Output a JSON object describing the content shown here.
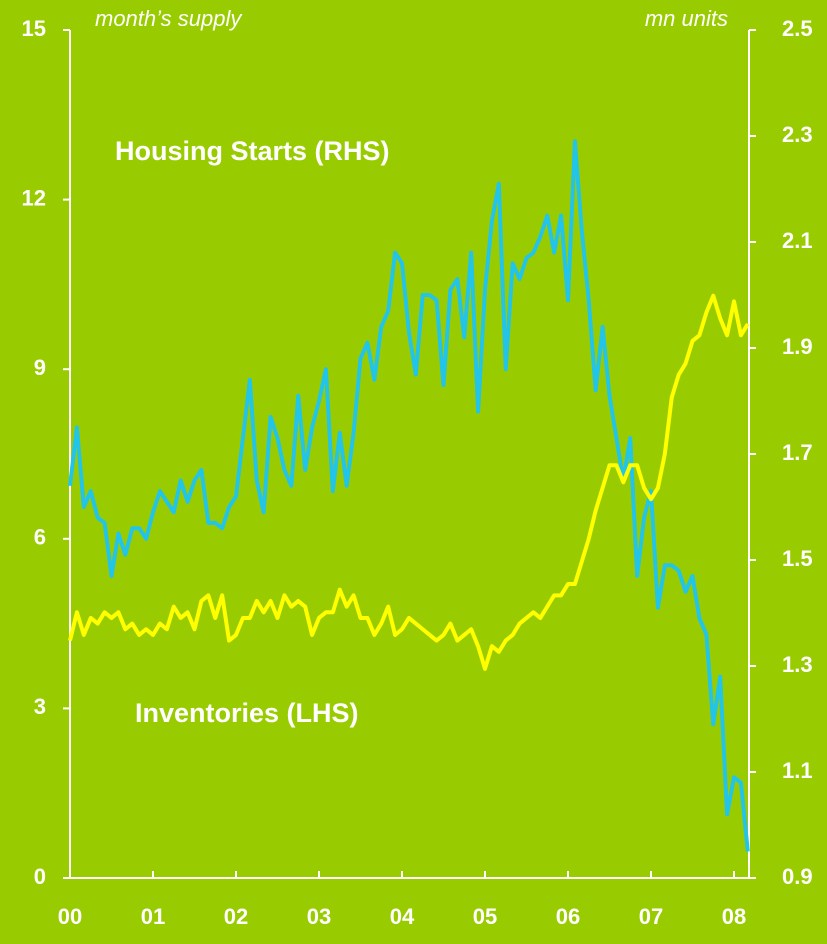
{
  "chart_data": {
    "type": "line",
    "annotations": [
      {
        "text": "month’s supply",
        "color": "#ffffff"
      },
      {
        "text": "mn units",
        "color": "#ffffff"
      },
      {
        "text": "Housing Starts (RHS)",
        "color": "#22c4e8"
      },
      {
        "text": "Inventories (LHS)",
        "color": "#ffff00"
      }
    ],
    "categories": [
      "00",
      null,
      null,
      null,
      null,
      null,
      null,
      null,
      null,
      null,
      null,
      null,
      "01",
      null,
      null,
      null,
      null,
      null,
      null,
      null,
      null,
      null,
      null,
      null,
      "02",
      null,
      null,
      null,
      null,
      null,
      null,
      null,
      null,
      null,
      null,
      null,
      "03",
      null,
      null,
      null,
      null,
      null,
      null,
      null,
      null,
      null,
      null,
      null,
      "04",
      null,
      null,
      null,
      null,
      null,
      null,
      null,
      null,
      null,
      null,
      null,
      "05",
      null,
      null,
      null,
      null,
      null,
      null,
      null,
      null,
      null,
      null,
      null,
      "06",
      null,
      null,
      null,
      null,
      null,
      null,
      null,
      null,
      null,
      null,
      null,
      "07",
      null,
      null,
      null,
      null,
      null,
      null,
      null,
      null,
      null,
      null,
      null,
      "08",
      null,
      null
    ],
    "series": [
      {
        "name": "Housing Starts (RHS)",
        "color": "#22c4e8",
        "axis": "y2",
        "values": [
          1.64,
          1.75,
          1.6,
          1.63,
          1.58,
          1.57,
          1.47,
          1.55,
          1.51,
          1.56,
          1.56,
          1.54,
          1.59,
          1.63,
          1.61,
          1.59,
          1.65,
          1.61,
          1.65,
          1.67,
          1.57,
          1.57,
          1.56,
          1.6,
          1.62,
          1.73,
          1.84,
          1.65,
          1.59,
          1.77,
          1.73,
          1.67,
          1.64,
          1.81,
          1.67,
          1.75,
          1.8,
          1.86,
          1.63,
          1.74,
          1.64,
          1.74,
          1.88,
          1.91,
          1.84,
          1.94,
          1.97,
          2.08,
          2.06,
          1.93,
          1.85,
          2.0,
          2.0,
          1.99,
          1.83,
          2.01,
          2.03,
          1.92,
          2.08,
          1.78,
          2.01,
          2.14,
          2.21,
          1.86,
          2.06,
          2.03,
          2.07,
          2.08,
          2.11,
          2.15,
          2.08,
          2.15,
          1.99,
          2.29,
          2.12,
          1.99,
          1.82,
          1.94,
          1.81,
          1.73,
          1.65,
          1.73,
          1.47,
          1.58,
          1.63,
          1.41,
          1.49,
          1.49,
          1.48,
          1.44,
          1.47,
          1.39,
          1.36,
          1.19,
          1.28,
          1.02,
          1.09,
          1.08,
          0.95
        ]
      },
      {
        "name": "Inventories (LHS)",
        "color": "#ffff00",
        "values": [
          4.2,
          4.7,
          4.3,
          4.6,
          4.5,
          4.7,
          4.6,
          4.7,
          4.4,
          4.5,
          4.3,
          4.4,
          4.3,
          4.5,
          4.4,
          4.8,
          4.6,
          4.7,
          4.4,
          4.9,
          5.0,
          4.6,
          5.0,
          4.2,
          4.3,
          4.6,
          4.6,
          4.9,
          4.7,
          4.9,
          4.6,
          5.0,
          4.8,
          4.9,
          4.8,
          4.3,
          4.6,
          4.7,
          4.7,
          5.1,
          4.8,
          5.0,
          4.6,
          4.6,
          4.3,
          4.5,
          4.8,
          4.3,
          4.4,
          4.6,
          4.5,
          4.4,
          4.3,
          4.2,
          4.3,
          4.5,
          4.2,
          4.3,
          4.4,
          4.1,
          3.7,
          4.1,
          4.0,
          4.2,
          4.3,
          4.5,
          4.6,
          4.7,
          4.6,
          4.8,
          5.0,
          5.0,
          5.2,
          5.2,
          5.6,
          6.0,
          6.5,
          6.9,
          7.3,
          7.3,
          7.0,
          7.3,
          7.3,
          6.9,
          6.7,
          6.9,
          7.5,
          8.5,
          8.9,
          9.1,
          9.5,
          9.6,
          10.0,
          10.3,
          9.9,
          9.6,
          10.2,
          9.6,
          9.8
        ]
      }
    ],
    "ylim": [
      0,
      15
    ],
    "yticks": [
      0,
      3,
      6,
      9,
      12,
      15
    ],
    "y2lim": [
      0.9,
      2.5
    ],
    "y2ticks": [
      0.9,
      1.1,
      1.3,
      1.5,
      1.7,
      1.9,
      2.1,
      2.3,
      2.5
    ],
    "grid": false
  }
}
